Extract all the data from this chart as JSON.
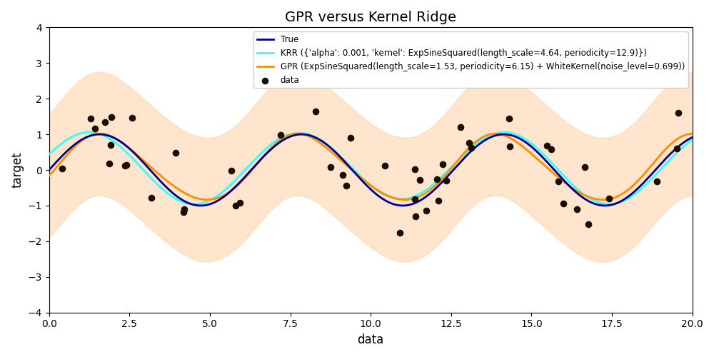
{
  "title": "GPR versus Kernel Ridge",
  "xlabel": "data",
  "ylabel": "target",
  "xlim": [
    0.0,
    20.0
  ],
  "ylim": [
    -4.0,
    4.0
  ],
  "true_color": "#00008B",
  "krr_color": "#2FFFFF",
  "gpr_color": "#FF8C00",
  "gpr_fill_color": "#FFDAB9",
  "data_color": "#1A0E00",
  "legend_labels": [
    "True",
    "KRR ({'alpha': 0.001, 'kernel': ExpSineSquared(length_scale=4.64, periodicity=12.9)})",
    "GPR (ExpSineSquared(length_scale=1.53, periodicity=6.15) + WhiteKernel(noise_level=0.699))",
    "data"
  ],
  "figsize": [
    10.0,
    5.0
  ],
  "dpi": 100
}
